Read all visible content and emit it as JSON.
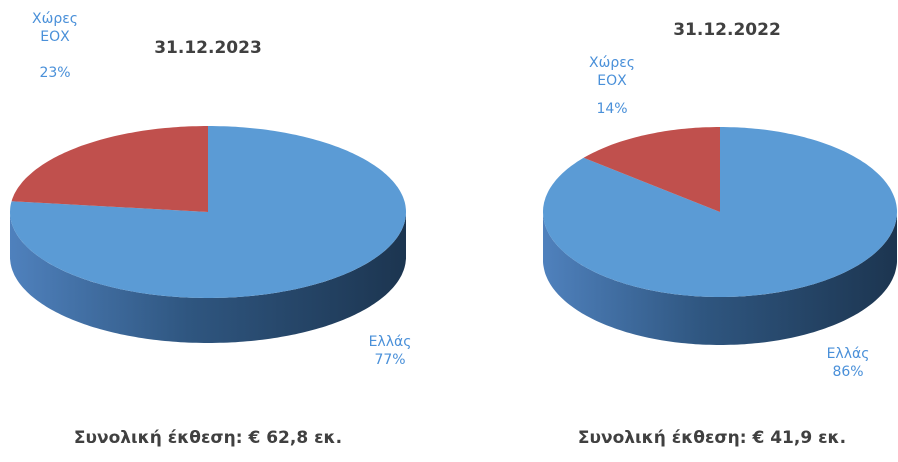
{
  "chart_data": [
    {
      "type": "pie",
      "title": "31.12.2023",
      "categories": [
        "Ελλάς",
        "Χώρες ΕΟΧ"
      ],
      "values": [
        77,
        23
      ],
      "value_labels": [
        "77%",
        "23%"
      ],
      "colors": [
        "#5b9bd5",
        "#c0504d"
      ],
      "caption": "Συνολική έκθεση: € 62,8 εκ."
    },
    {
      "type": "pie",
      "title": "31.12.2022",
      "categories": [
        "Ελλάς",
        "Χώρες ΕΟΧ"
      ],
      "values": [
        86,
        14
      ],
      "value_labels": [
        "86%",
        "14%"
      ],
      "colors": [
        "#5b9bd5",
        "#c0504d"
      ],
      "caption": "Συνολική έκθεση: € 41,9 εκ."
    }
  ]
}
